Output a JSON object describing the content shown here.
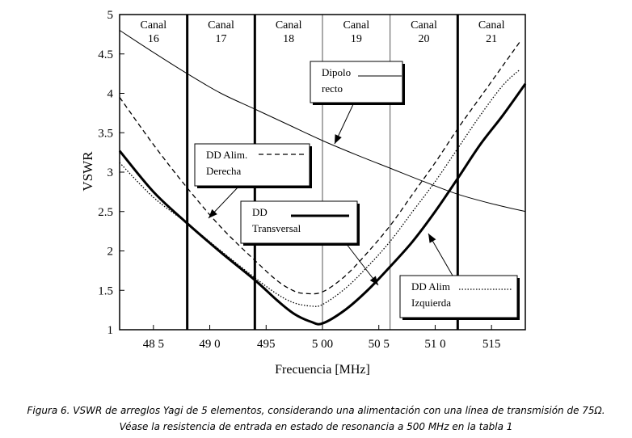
{
  "chart_data": {
    "type": "line",
    "xlabel": "Frecuencia [MHz]",
    "ylabel": "VSWR",
    "xlim": [
      482,
      518
    ],
    "ylim": [
      1,
      5
    ],
    "xticks": [
      485,
      490,
      495,
      500,
      505,
      510,
      515
    ],
    "xtick_labels": [
      "48 5",
      "49 0",
      "495",
      "5 00",
      "50 5",
      "51 0",
      "515"
    ],
    "yticks": [
      1,
      1.5,
      2,
      2.5,
      3,
      3.5,
      4,
      4.5,
      5
    ],
    "ytick_labels": [
      "1",
      "1.5",
      "2",
      "2.5",
      "3",
      "3.5",
      "4",
      "4.5",
      "5"
    ],
    "channel_boundaries_mhz": [
      488,
      494,
      500,
      506,
      512
    ],
    "channels": [
      {
        "label": "Canal",
        "number": "16",
        "center": 485
      },
      {
        "label": "Canal",
        "number": "17",
        "center": 491
      },
      {
        "label": "Canal",
        "number": "18",
        "center": 497
      },
      {
        "label": "Canal",
        "number": "19",
        "center": 503
      },
      {
        "label": "Canal",
        "number": "20",
        "center": 509
      },
      {
        "label": "Canal",
        "number": "21",
        "center": 515
      }
    ],
    "series": [
      {
        "name": "Dipolo recto",
        "label_lines": [
          "Dipolo",
          "recto"
        ],
        "style": "thin",
        "x": [
          482,
          485,
          488,
          491,
          494,
          497,
          500,
          503,
          506,
          509,
          512,
          515,
          518
        ],
        "y": [
          4.8,
          4.52,
          4.25,
          4.0,
          3.8,
          3.6,
          3.4,
          3.22,
          3.05,
          2.88,
          2.72,
          2.6,
          2.5
        ]
      },
      {
        "name": "DD Alim. Derecha",
        "label_lines": [
          "DD Alim.",
          "Derecha"
        ],
        "style": "dashed",
        "x": [
          482,
          485,
          488,
          491,
          494,
          496,
          497.5,
          498.5,
          500,
          502,
          504,
          506,
          508,
          510,
          512,
          514,
          516,
          517.5
        ],
        "y": [
          3.95,
          3.35,
          2.8,
          2.3,
          1.88,
          1.62,
          1.49,
          1.46,
          1.48,
          1.68,
          1.98,
          2.32,
          2.72,
          3.12,
          3.55,
          3.95,
          4.35,
          4.65
        ]
      },
      {
        "name": "DD Transversal",
        "label_lines": [
          "DD",
          "Transversal"
        ],
        "style": "thick",
        "x": [
          482,
          485,
          488,
          491,
          494,
          496,
          497.5,
          499,
          500,
          502,
          504,
          506,
          508,
          510,
          512,
          514,
          516,
          518
        ],
        "y": [
          3.27,
          2.75,
          2.35,
          1.98,
          1.63,
          1.37,
          1.2,
          1.1,
          1.08,
          1.25,
          1.5,
          1.8,
          2.12,
          2.5,
          2.92,
          3.35,
          3.72,
          4.12
        ]
      },
      {
        "name": "DD Alim Izquierda",
        "label_lines": [
          "DD Alim",
          "Izquierda"
        ],
        "style": "dotted",
        "x": [
          482,
          485,
          488,
          491,
          494,
          496,
          497.5,
          499,
          500,
          502,
          504,
          506,
          508,
          510,
          512,
          514,
          516,
          517.5
        ],
        "y": [
          3.12,
          2.68,
          2.35,
          2.0,
          1.66,
          1.45,
          1.34,
          1.3,
          1.32,
          1.52,
          1.8,
          2.12,
          2.5,
          2.88,
          3.3,
          3.72,
          4.1,
          4.3
        ]
      }
    ]
  },
  "caption": {
    "line1": "Figura 6. VSWR de arreglos Yagi de 5 elementos, considerando una alimentación con una línea de transmisión de 75Ω.",
    "line2": "Véase la resistencia de entrada en estado de resonancia a 500 MHz en la tabla 1"
  }
}
